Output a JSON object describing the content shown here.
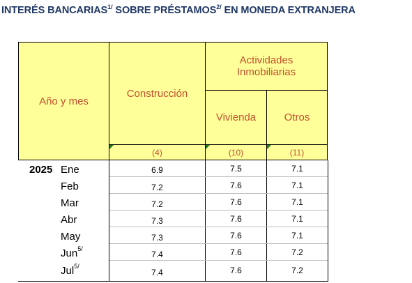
{
  "title": {
    "part1": "INTERÉS BANCARIAS",
    "note1": "1/",
    "part2": " SOBRE PRÉSTAMOS",
    "note2": "2/",
    "part3": " EN MONEDA EXTRANJERA"
  },
  "header": {
    "col_year": "Año y mes",
    "col_construccion": "Construcción",
    "col_actividades": "Actividades Inmobiliarias",
    "col_vivienda": "Vivienda",
    "col_otros": "Otros",
    "code_construccion": "(4)",
    "code_vivienda": "(10)",
    "code_otros": "(11)"
  },
  "year": "2025",
  "rows": [
    {
      "month": "Ene",
      "note": "",
      "construccion": "6.9",
      "vivienda": "7.5",
      "otros": "7.1"
    },
    {
      "month": "Feb",
      "note": "",
      "construccion": "7.2",
      "vivienda": "7.6",
      "otros": "7.1"
    },
    {
      "month": "Mar",
      "note": "",
      "construccion": "7.2",
      "vivienda": "7.6",
      "otros": "7.1"
    },
    {
      "month": "Abr",
      "note": "",
      "construccion": "7.3",
      "vivienda": "7.6",
      "otros": "7.1"
    },
    {
      "month": "May",
      "note": "",
      "construccion": "7.3",
      "vivienda": "7.6",
      "otros": "7.1"
    },
    {
      "month": "Jun",
      "note": "5/",
      "construccion": "7.4",
      "vivienda": "7.6",
      "otros": "7.2"
    },
    {
      "month": "Jul",
      "note": "5/",
      "construccion": "7.4",
      "vivienda": "7.6",
      "otros": "7.2"
    }
  ],
  "colors": {
    "header_bg": "#ffff99",
    "header_text": "#c0502f",
    "title_text": "#1f3864"
  }
}
